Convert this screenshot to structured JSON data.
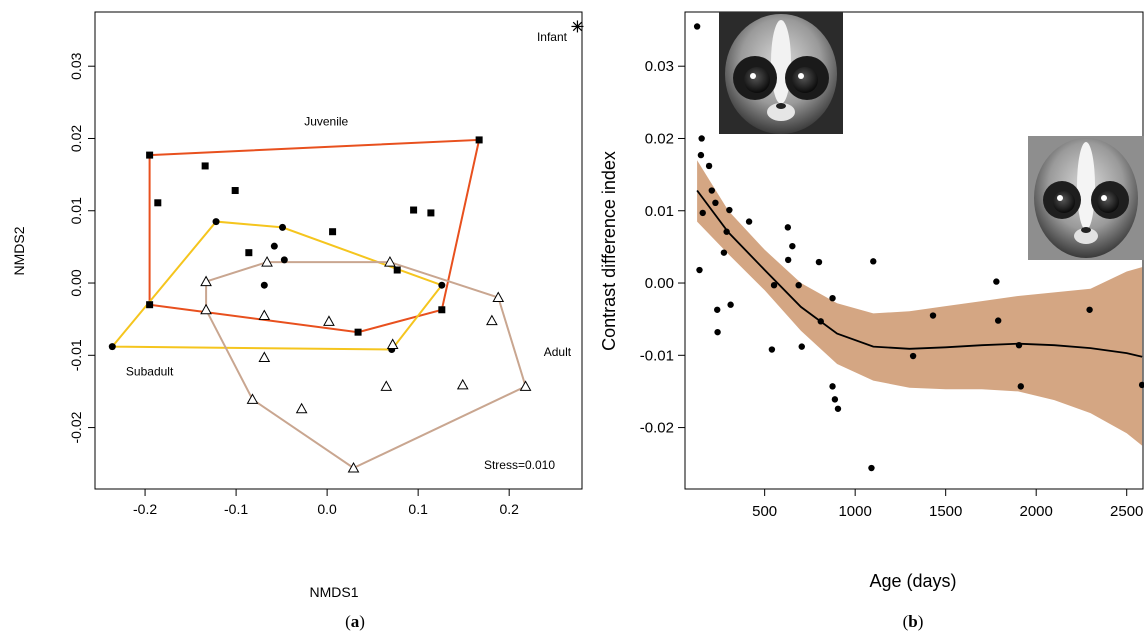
{
  "panels": {
    "a": {
      "caption_open": "(",
      "caption_letter": "a",
      "caption_close": ")"
    },
    "b": {
      "caption_open": "(",
      "caption_letter": "b",
      "caption_close": ")"
    }
  },
  "chart_data": [
    {
      "type": "scatter",
      "xlabel": "NMDS1",
      "ylabel": "NMDS2",
      "xlim": [
        -0.255,
        0.28
      ],
      "ylim": [
        -0.0285,
        0.0375
      ],
      "xticks": [
        -0.2,
        -0.1,
        0.0,
        0.1,
        0.2
      ],
      "xtick_labels": [
        "-0.2",
        "-0.1",
        "0.0",
        "0.1",
        "0.2"
      ],
      "yticks": [
        -0.02,
        -0.01,
        0.0,
        0.01,
        0.02,
        0.03
      ],
      "ytick_labels": [
        "-0.02",
        "-0.01",
        "0.00",
        "0.01",
        "0.02",
        "0.03"
      ],
      "annotation": "Stress=0.010",
      "series": [
        {
          "name": "Juvenile",
          "marker": "square",
          "hull_color": "#e8501e",
          "points": [
            [
              -0.195,
              0.0177
            ],
            [
              -0.186,
              0.0111
            ],
            [
              -0.134,
              0.0162
            ],
            [
              -0.101,
              0.0128
            ],
            [
              -0.086,
              0.0042
            ],
            [
              -0.195,
              -0.003
            ],
            [
              0.034,
              -0.0068
            ],
            [
              0.006,
              0.0071
            ],
            [
              0.077,
              0.0018
            ],
            [
              0.095,
              0.0101
            ],
            [
              0.114,
              0.0097
            ],
            [
              0.126,
              -0.0037
            ],
            [
              0.167,
              0.0198
            ]
          ],
          "hull": [
            [
              -0.195,
              0.0177
            ],
            [
              0.167,
              0.0198
            ],
            [
              0.126,
              -0.0037
            ],
            [
              0.034,
              -0.0068
            ],
            [
              -0.195,
              -0.003
            ]
          ]
        },
        {
          "name": "Subadult",
          "marker": "circle",
          "hull_color": "#f5c51e",
          "points": [
            [
              -0.236,
              -0.0088
            ],
            [
              -0.122,
              0.0085
            ],
            [
              -0.049,
              0.0077
            ],
            [
              -0.058,
              0.0051
            ],
            [
              -0.047,
              0.0032
            ],
            [
              -0.069,
              -0.0003
            ],
            [
              0.071,
              -0.0092
            ],
            [
              0.126,
              -0.0003
            ]
          ],
          "hull": [
            [
              -0.236,
              -0.0088
            ],
            [
              -0.122,
              0.0085
            ],
            [
              -0.049,
              0.0077
            ],
            [
              0.126,
              -0.0003
            ],
            [
              0.071,
              -0.0092
            ]
          ]
        },
        {
          "name": "Adult",
          "marker": "triangle",
          "hull_color": "#c9a690",
          "points": [
            [
              -0.133,
              0.0002
            ],
            [
              -0.133,
              -0.0037
            ],
            [
              -0.066,
              0.0029
            ],
            [
              -0.069,
              -0.0045
            ],
            [
              -0.069,
              -0.0103
            ],
            [
              -0.082,
              -0.0161
            ],
            [
              -0.028,
              -0.0174
            ],
            [
              0.002,
              -0.0053
            ],
            [
              0.069,
              0.0029
            ],
            [
              0.072,
              -0.0085
            ],
            [
              0.065,
              -0.0143
            ],
            [
              0.029,
              -0.0256
            ],
            [
              0.149,
              -0.0141
            ],
            [
              0.181,
              -0.0052
            ],
            [
              0.188,
              -0.002
            ],
            [
              0.218,
              -0.0143
            ]
          ],
          "hull": [
            [
              -0.133,
              0.0002
            ],
            [
              -0.066,
              0.0029
            ],
            [
              0.069,
              0.0029
            ],
            [
              0.188,
              -0.002
            ],
            [
              0.218,
              -0.0143
            ],
            [
              0.029,
              -0.0256
            ],
            [
              -0.082,
              -0.0161
            ],
            [
              -0.133,
              -0.0037
            ]
          ]
        },
        {
          "name": "Infant",
          "marker": "asterisk",
          "points": [
            [
              0.275,
              0.0355
            ]
          ]
        }
      ],
      "group_labels": [
        {
          "text": "Juvenile",
          "x": -0.001,
          "y": 0.0218
        },
        {
          "text": "Subadult",
          "x": -0.195,
          "y": -0.0128
        },
        {
          "text": "Adult",
          "x": 0.253,
          "y": -0.0101
        },
        {
          "text": "Infant",
          "x": 0.247,
          "y": 0.0335
        }
      ]
    },
    {
      "type": "scatter",
      "xlabel": "Age (days)",
      "ylabel": "Contrast difference index",
      "xlim": [
        60,
        2590
      ],
      "ylim": [
        -0.0285,
        0.0375
      ],
      "xticks": [
        500,
        1000,
        1500,
        2000,
        2500
      ],
      "xtick_labels": [
        "500",
        "1000",
        "1500",
        "2000",
        "2500"
      ],
      "yticks": [
        -0.02,
        -0.01,
        0.0,
        0.01,
        0.02,
        0.03
      ],
      "ytick_labels": [
        "-0.02",
        "-0.01",
        "0.00",
        "0.01",
        "0.02",
        "0.03"
      ],
      "points": [
        [
          127,
          0.0355
        ],
        [
          152,
          0.02
        ],
        [
          148,
          0.0177
        ],
        [
          158,
          0.0097
        ],
        [
          140,
          0.0018
        ],
        [
          193,
          0.0162
        ],
        [
          208,
          0.0128
        ],
        [
          228,
          0.0111
        ],
        [
          238,
          -0.0037
        ],
        [
          240,
          -0.0068
        ],
        [
          275,
          0.0042
        ],
        [
          290,
          0.0071
        ],
        [
          305,
          0.0101
        ],
        [
          312,
          -0.003
        ],
        [
          414,
          0.0085
        ],
        [
          540,
          -0.0092
        ],
        [
          552,
          -0.0003
        ],
        [
          628,
          0.0077
        ],
        [
          630,
          0.0032
        ],
        [
          653,
          0.0051
        ],
        [
          688,
          -0.0003
        ],
        [
          705,
          -0.0088
        ],
        [
          800,
          0.0029
        ],
        [
          810,
          -0.0053
        ],
        [
          875,
          -0.0143
        ],
        [
          875,
          -0.0021
        ],
        [
          888,
          -0.0161
        ],
        [
          905,
          -0.0174
        ],
        [
          1090,
          -0.0256
        ],
        [
          1100,
          0.003
        ],
        [
          1320,
          -0.0101
        ],
        [
          1430,
          -0.0045
        ],
        [
          1780,
          0.0002
        ],
        [
          1790,
          -0.0052
        ],
        [
          1905,
          -0.0086
        ],
        [
          1915,
          -0.0143
        ],
        [
          2295,
          -0.0037
        ],
        [
          2585,
          -0.0141
        ]
      ],
      "smooth": {
        "x": [
          127,
          300,
          500,
          700,
          900,
          1100,
          1300,
          1500,
          1700,
          1900,
          2100,
          2300,
          2500,
          2585
        ],
        "y": [
          0.0128,
          0.007,
          0.0018,
          -0.0033,
          -0.007,
          -0.0088,
          -0.0091,
          -0.0089,
          -0.0086,
          -0.0084,
          -0.0086,
          -0.009,
          -0.0097,
          -0.0102
        ],
        "lower": [
          0.0085,
          0.004,
          -0.001,
          -0.0066,
          -0.0112,
          -0.0135,
          -0.0145,
          -0.0147,
          -0.0147,
          -0.015,
          -0.0162,
          -0.018,
          -0.0208,
          -0.0225
        ],
        "upper": [
          0.017,
          0.01,
          0.0046,
          0.0,
          -0.0028,
          -0.0042,
          -0.0039,
          -0.0032,
          -0.0025,
          -0.0018,
          -0.0013,
          -0.0008,
          0.0016,
          0.0022
        ]
      },
      "band_color": "#d4a683",
      "line_color": "#000000",
      "images": [
        "juvenile-loris-photo",
        "adult-loris-photo"
      ]
    }
  ]
}
